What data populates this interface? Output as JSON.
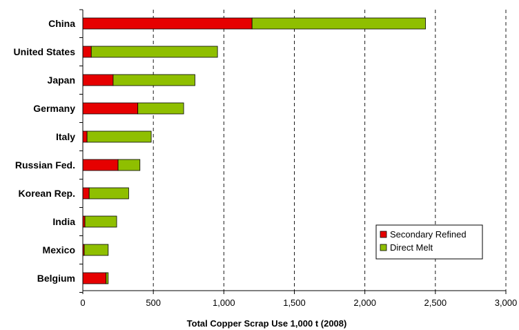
{
  "chart_data": {
    "type": "bar",
    "orientation": "horizontal",
    "stacked": true,
    "categories": [
      "China",
      "United States",
      "Japan",
      "Germany",
      "Italy",
      "Russian Fed.",
      "Korean Rep.",
      "India",
      "Mexico",
      "Belgium"
    ],
    "series": [
      {
        "name": "Secondary Refined",
        "color": "#e60000",
        "values": [
          1200,
          60,
          215,
          390,
          30,
          250,
          45,
          15,
          10,
          165
        ]
      },
      {
        "name": "Direct Melt",
        "color": "#8fbf00",
        "values": [
          1230,
          895,
          580,
          325,
          455,
          155,
          280,
          225,
          170,
          15
        ]
      }
    ],
    "xlabel": "Total Copper Scrap Use 1,000 t (2008)",
    "xlim": [
      0,
      3000
    ],
    "xticks": [
      0,
      500,
      1000,
      1500,
      2000,
      2500,
      3000
    ],
    "xtick_labels": [
      "0",
      "500",
      "1,000",
      "1,500",
      "2,000",
      "2,500",
      "3,000"
    ],
    "grid": "vertical dashed",
    "legend_position": "lower-right"
  }
}
